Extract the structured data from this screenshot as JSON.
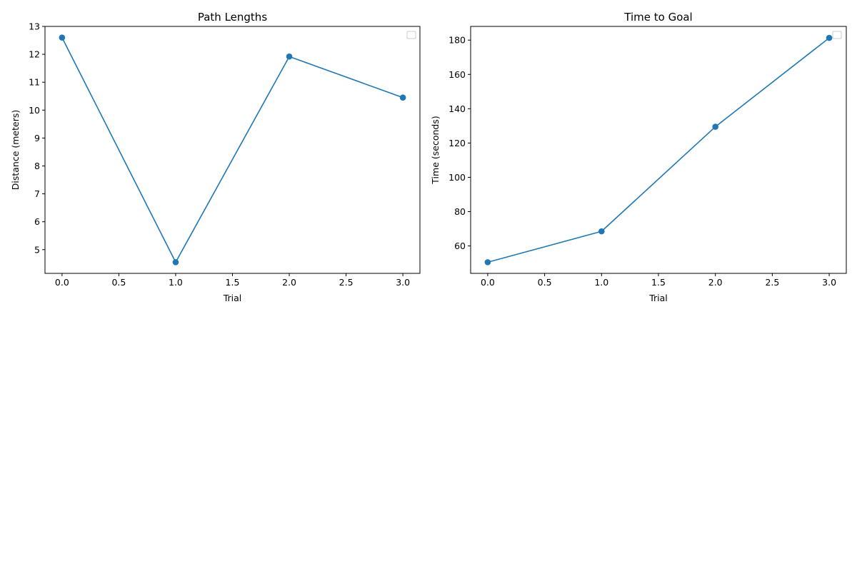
{
  "colors": {
    "series": "#1f77b4",
    "axis": "#000000",
    "background": "#ffffff",
    "legend_border": "#cccccc"
  },
  "chart_data": [
    {
      "type": "line",
      "title": "Path Lengths",
      "xlabel": "Trial",
      "ylabel": "Distance (meters)",
      "x": [
        0,
        1,
        2,
        3
      ],
      "series": [
        {
          "values": [
            12.6,
            4.55,
            11.92,
            10.45
          ],
          "marker": "circle"
        }
      ],
      "xlim": [
        -0.15,
        3.15
      ],
      "ylim": [
        4.15,
        13.0
      ],
      "xticks": [
        0.0,
        0.5,
        1.0,
        1.5,
        2.0,
        2.5,
        3.0
      ],
      "xtick_labels": [
        "0.0",
        "0.5",
        "1.0",
        "1.5",
        "2.0",
        "2.5",
        "3.0"
      ],
      "yticks": [
        5,
        6,
        7,
        8,
        9,
        10,
        11,
        12,
        13
      ],
      "ytick_labels": [
        "5",
        "6",
        "7",
        "8",
        "9",
        "10",
        "11",
        "12",
        "13"
      ],
      "grid": false,
      "legend": "top-right (empty)"
    },
    {
      "type": "line",
      "title": "Time to Goal",
      "xlabel": "Trial",
      "ylabel": "Time (seconds)",
      "x": [
        0,
        1,
        2,
        3
      ],
      "series": [
        {
          "values": [
            50.5,
            68.5,
            129.5,
            181.3
          ],
          "marker": "circle"
        }
      ],
      "xlim": [
        -0.15,
        3.15
      ],
      "ylim": [
        44.0,
        188.0
      ],
      "xticks": [
        0.0,
        0.5,
        1.0,
        1.5,
        2.0,
        2.5,
        3.0
      ],
      "xtick_labels": [
        "0.0",
        "0.5",
        "1.0",
        "1.5",
        "2.0",
        "2.5",
        "3.0"
      ],
      "yticks": [
        60,
        80,
        100,
        120,
        140,
        160,
        180
      ],
      "ytick_labels": [
        "60",
        "80",
        "100",
        "120",
        "140",
        "160",
        "180"
      ],
      "grid": false,
      "legend": "top-right (empty)"
    }
  ]
}
